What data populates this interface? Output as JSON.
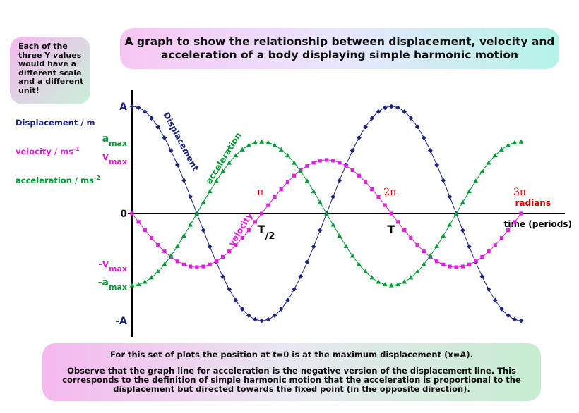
{
  "title": "A graph to show the relationship between displacement, velocity and acceleration of a body displaying simple harmonic motion",
  "note": "Each of the three Y values would have a different scale and a different unit!",
  "legend": {
    "displacement": "Displacement / m",
    "velocity": "velocity / ms",
    "velocity_exp": "-1",
    "acceleration": "acceleration / ms",
    "acceleration_exp": "-2"
  },
  "footer": {
    "line1": "For this set of plots the position at t=0 is at the maximum displacement (x=A).",
    "line2": "Observe that the graph line for acceleration is the negative version of the displacement line. This corresponds to the definition of simple harmonic motion that the acceleration is proportional to the displacement but directed towards the fixed point (in the opposite direction)."
  },
  "chart_data": {
    "type": "line",
    "xlabel": "time (periods)",
    "x_units_label": "radians",
    "x_range": [
      0,
      1.5
    ],
    "y_range": [
      -1,
      1
    ],
    "y_ticks": [
      {
        "label": "A",
        "value": 1,
        "color": "#1a237e"
      },
      {
        "label": "a",
        "sub": "max",
        "value": 0.67,
        "color": "#009933"
      },
      {
        "label": "v",
        "sub": "max",
        "value": 0.5,
        "color": "#e020e0"
      },
      {
        "label": "0",
        "value": 0,
        "color": "#000000"
      },
      {
        "label": "-v",
        "sub": "max",
        "value": -0.5,
        "color": "#e020e0"
      },
      {
        "label": "-a",
        "sub": "max",
        "value": -0.67,
        "color": "#009933"
      },
      {
        "label": "-A",
        "value": -1,
        "color": "#1a237e"
      }
    ],
    "x_annotations": [
      {
        "label": "π",
        "x": 0.5,
        "color": "#d40000"
      },
      {
        "label": "2π",
        "x": 1.0,
        "color": "#d40000"
      },
      {
        "label": "3π",
        "x": 1.5,
        "color": "#d40000"
      }
    ],
    "time_markers": [
      {
        "label": "T",
        "sub": "/2",
        "x": 0.5
      },
      {
        "label": "T",
        "x": 1.0
      }
    ],
    "series": [
      {
        "name": "Displacement",
        "function": "cos",
        "amplitude": 1,
        "color": "#1a237e",
        "marker": "diamond"
      },
      {
        "name": "velocity",
        "function": "-sin",
        "amplitude": 0.5,
        "color": "#e020e0",
        "marker": "square"
      },
      {
        "name": "acceleration",
        "function": "-cos",
        "amplitude": 0.67,
        "color": "#009933",
        "marker": "triangle"
      }
    ]
  }
}
